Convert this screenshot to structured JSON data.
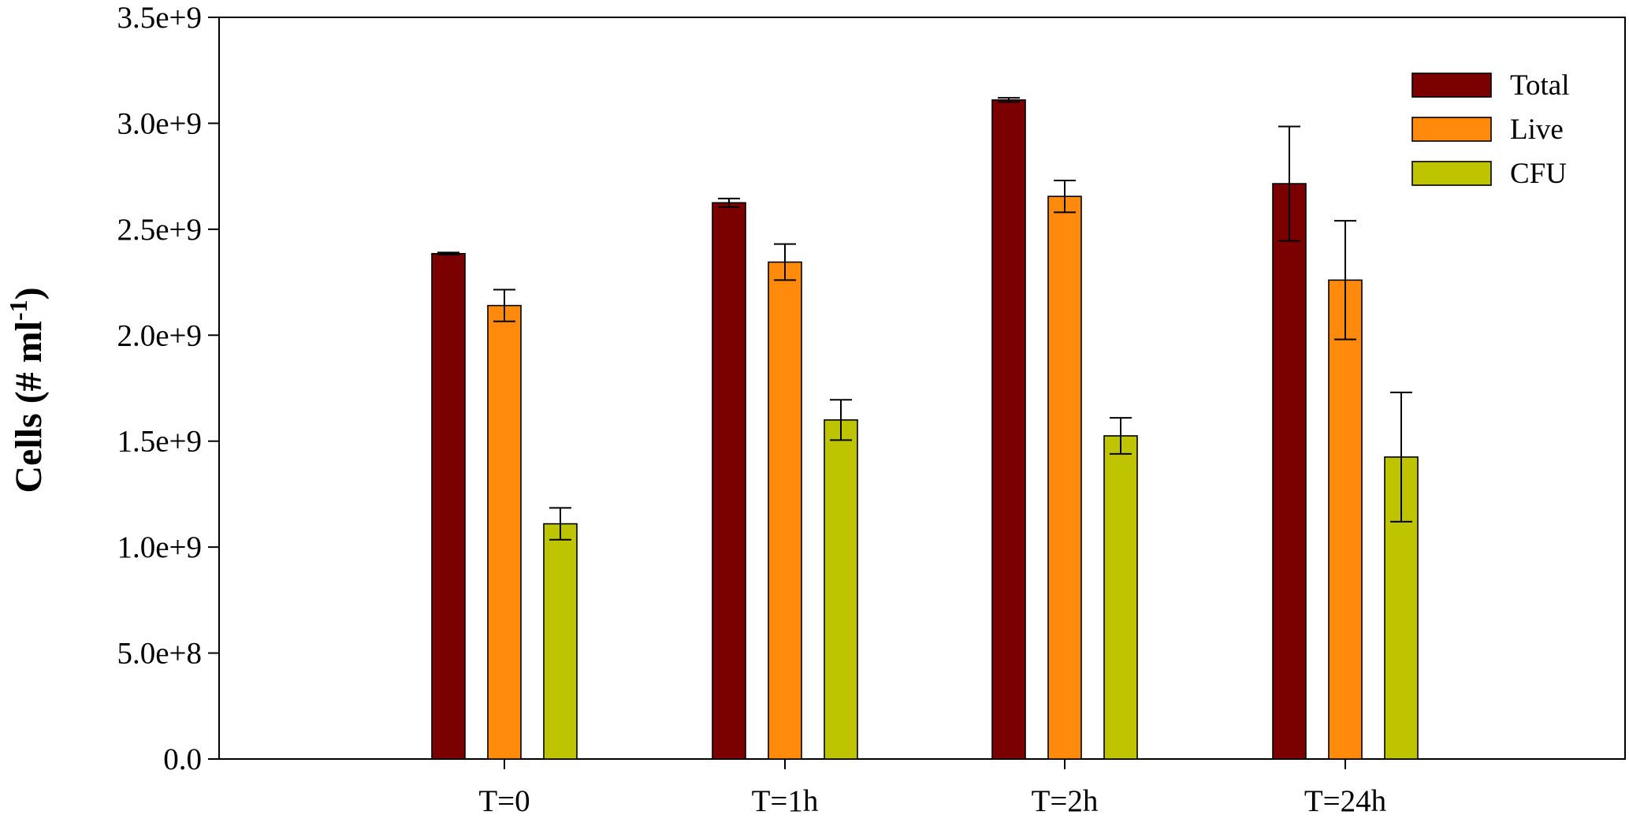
{
  "chart_data": {
    "type": "bar",
    "title": "",
    "xlabel": "",
    "ylabel": "Cells (# ml",
    "ylabel_superscript": "-1",
    "ylabel_suffix": ")",
    "categories": [
      "T=0",
      "T=1h",
      "T=2h",
      "T=24h"
    ],
    "ylim": [
      0,
      3500000000
    ],
    "yticks": [
      0,
      500000000,
      1000000000,
      1500000000,
      2000000000,
      2500000000,
      3000000000,
      3500000000
    ],
    "ytick_labels": [
      "0.0",
      "5.0e+8",
      "1.0e+9",
      "1.5e+9",
      "2.0e+9",
      "2.5e+9",
      "3.0e+9",
      "3.5e+9"
    ],
    "legend_position": "top-right",
    "grid": false,
    "series": [
      {
        "name": "Total",
        "color": "#7b0000",
        "values": [
          2385000000,
          2625000000,
          3110000000,
          2715000000
        ],
        "errors": [
          5000000,
          20000000,
          10000000,
          270000000
        ]
      },
      {
        "name": "Live",
        "color": "#ff8a0c",
        "values": [
          2140000000,
          2345000000,
          2655000000,
          2260000000
        ],
        "errors": [
          75000000,
          85000000,
          75000000,
          280000000
        ]
      },
      {
        "name": "CFU",
        "color": "#bec400",
        "values": [
          1110000000,
          1600000000,
          1525000000,
          1425000000
        ],
        "errors": [
          75000000,
          95000000,
          85000000,
          305000000
        ]
      }
    ]
  }
}
